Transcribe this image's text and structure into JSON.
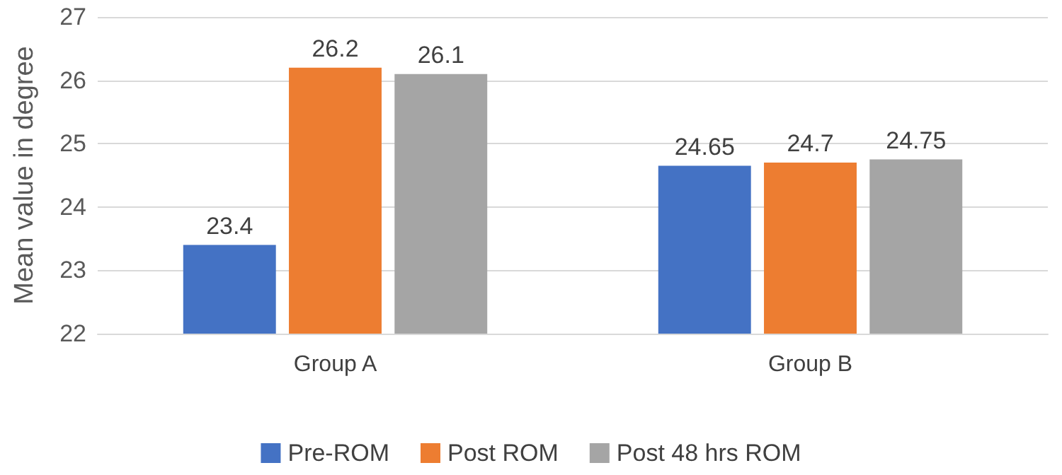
{
  "chart_data": {
    "type": "bar",
    "ylabel": "Mean value in degree",
    "categories": [
      "Group A",
      "Group B"
    ],
    "series": [
      {
        "name": "Pre-ROM",
        "color": "#4472c4",
        "values": [
          23.4,
          24.65
        ]
      },
      {
        "name": "Post ROM",
        "color": "#ed7d31",
        "values": [
          26.2,
          24.7
        ]
      },
      {
        "name": "Post 48 hrs ROM",
        "color": "#a5a5a5",
        "values": [
          26.1,
          24.75
        ]
      }
    ],
    "ylim": [
      22,
      27
    ],
    "yticks": [
      22,
      23,
      24,
      25,
      26,
      27
    ],
    "grid": "y",
    "data_labels": true,
    "legend": "bottom"
  }
}
